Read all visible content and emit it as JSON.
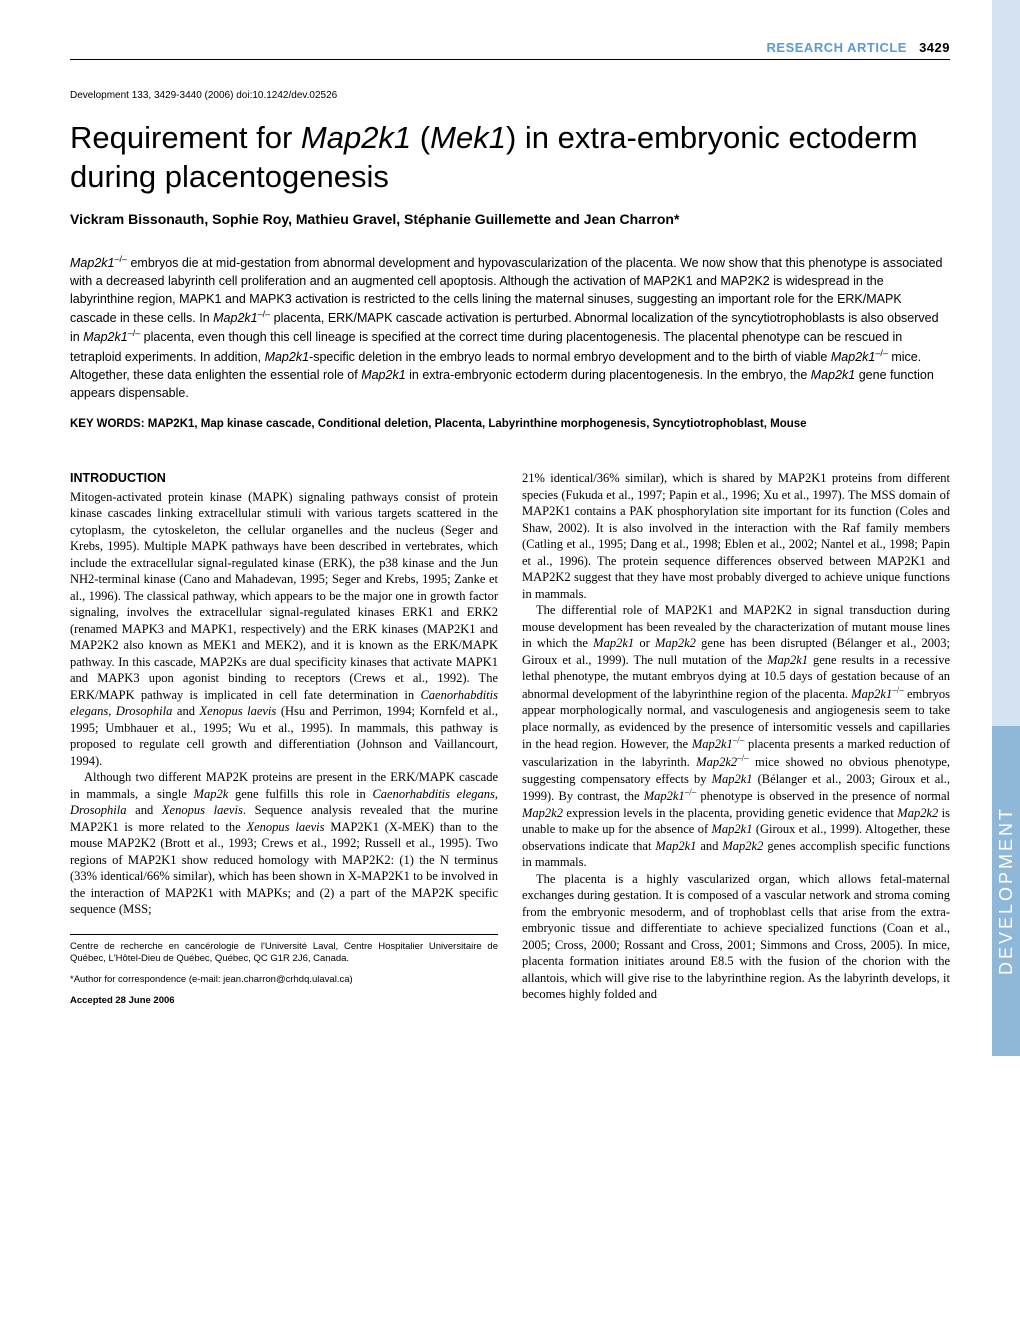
{
  "header": {
    "category": "RESEARCH ARTICLE",
    "pagenum": "3429"
  },
  "citation": "Development 133, 3429-3440 (2006) doi:10.1242/dev.02526",
  "title_html": "Requirement for <span class=\"italic\">Map2k1</span> (<span class=\"italic\">Mek1</span>) in extra-embryonic ectoderm during placentogenesis",
  "authors": "Vickram Bissonauth, Sophie Roy, Mathieu Gravel, Stéphanie Guillemette and Jean Charron*",
  "abstract_html": "<span class=\"italic\">Map2k1</span><span class=\"sup\">–/–</span> embryos die at mid-gestation from abnormal development and hypovascularization of the placenta. We now show that this phenotype is associated with a decreased labyrinth cell proliferation and an augmented cell apoptosis. Although the activation of MAP2K1 and MAP2K2 is widespread in the labyrinthine region, MAPK1 and MAPK3 activation is restricted to the cells lining the maternal sinuses, suggesting an important role for the ERK/MAPK cascade in these cells. In <span class=\"italic\">Map2k1</span><span class=\"sup\">–/–</span> placenta, ERK/MAPK cascade activation is perturbed. Abnormal localization of the syncytiotrophoblasts is also observed in <span class=\"italic\">Map2k1</span><span class=\"sup\">–/–</span> placenta, even though this cell lineage is specified at the correct time during placentogenesis. The placental phenotype can be rescued in tetraploid experiments. In addition, <span class=\"italic\">Map2k1</span>-specific deletion in the embryo leads to normal embryo development and to the birth of viable <span class=\"italic\">Map2k1</span><span class=\"sup\">–/–</span> mice. Altogether, these data enlighten the essential role of <span class=\"italic\">Map2k1</span> in extra-embryonic ectoderm during placentogenesis. In the embryo, the <span class=\"italic\">Map2k1</span> gene function appears dispensable.",
  "keywords": "KEY WORDS: MAP2K1, Map kinase cascade, Conditional deletion, Placenta, Labyrinthine morphogenesis, Syncytiotrophoblast, Mouse",
  "section_heading": "INTRODUCTION",
  "col1_p1_html": "Mitogen-activated protein kinase (MAPK) signaling pathways consist of protein kinase cascades linking extracellular stimuli with various targets scattered in the cytoplasm, the cytoskeleton, the cellular organelles and the nucleus (Seger and Krebs, 1995). Multiple MAPK pathways have been described in vertebrates, which include the extracellular signal-regulated kinase (ERK), the p38 kinase and the Jun NH2-terminal kinase (Cano and Mahadevan, 1995; Seger and Krebs, 1995; Zanke et al., 1996). The classical pathway, which appears to be the major one in growth factor signaling, involves the extracellular signal-regulated kinases ERK1 and ERK2 (renamed MAPK3 and MAPK1, respectively) and the ERK kinases (MAP2K1 and MAP2K2 also known as MEK1 and MEK2), and it is known as the ERK/MAPK pathway. In this cascade, MAP2Ks are dual specificity kinases that activate MAPK1 and MAPK3 upon agonist binding to receptors (Crews et al., 1992). The ERK/MAPK pathway is implicated in cell fate determination in <span class=\"italic\">Caenorhabditis elegans</span>, <span class=\"italic\">Drosophila</span> and <span class=\"italic\">Xenopus laevis</span> (Hsu and Perrimon, 1994; Kornfeld et al., 1995; Umbhauer et al., 1995; Wu et al., 1995). In mammals, this pathway is proposed to regulate cell growth and differentiation (Johnson and Vaillancourt, 1994).",
  "col1_p2_html": "Although two different MAP2K proteins are present in the ERK/MAPK cascade in mammals, a single <span class=\"italic\">Map2k</span> gene fulfills this role in <span class=\"italic\">Caenorhabditis elegans</span>, <span class=\"italic\">Drosophila</span> and <span class=\"italic\">Xenopus laevis</span>. Sequence analysis revealed that the murine MAP2K1 is more related to the <span class=\"italic\">Xenopus laevis</span> MAP2K1 (X-MEK) than to the mouse MAP2K2 (Brott et al., 1993; Crews et al., 1992; Russell et al., 1995). Two regions of MAP2K1 show reduced homology with MAP2K2: (1) the N terminus (33% identical/66% similar), which has been shown in X-MAP2K1 to be involved in the interaction of MAP2K1 with MAPKs; and (2) a part of the MAP2K specific sequence (MSS;",
  "col2_p1_html": "21% identical/36% similar), which is shared by MAP2K1 proteins from different species (Fukuda et al., 1997; Papin et al., 1996; Xu et al., 1997). The MSS domain of MAP2K1 contains a PAK phosphorylation site important for its function (Coles and Shaw, 2002). It is also involved in the interaction with the Raf family members (Catling et al., 1995; Dang et al., 1998; Eblen et al., 2002; Nantel et al., 1998; Papin et al., 1996). The protein sequence differences observed between MAP2K1 and MAP2K2 suggest that they have most probably diverged to achieve unique functions in mammals.",
  "col2_p2_html": "The differential role of MAP2K1 and MAP2K2 in signal transduction during mouse development has been revealed by the characterization of mutant mouse lines in which the <span class=\"italic\">Map2k1</span> or <span class=\"italic\">Map2k2</span> gene has been disrupted (Bélanger et al., 2003; Giroux et al., 1999). The null mutation of the <span class=\"italic\">Map2k1</span> gene results in a recessive lethal phenotype, the mutant embryos dying at 10.5 days of gestation because of an abnormal development of the labyrinthine region of the placenta. <span class=\"italic\">Map2k1</span><span class=\"sup\">–/–</span> embryos appear morphologically normal, and vasculogenesis and angiogenesis seem to take place normally, as evidenced by the presence of intersomitic vessels and capillaries in the head region. However, the <span class=\"italic\">Map2k1</span><span class=\"sup\">–/–</span> placenta presents a marked reduction of vascularization in the labyrinth. <span class=\"italic\">Map2k2</span><span class=\"sup\">–/–</span> mice showed no obvious phenotype, suggesting compensatory effects by <span class=\"italic\">Map2k1</span> (Bélanger et al., 2003; Giroux et al., 1999). By contrast, the <span class=\"italic\">Map2k1</span><span class=\"sup\">–/–</span> phenotype is observed in the presence of normal <span class=\"italic\">Map2k2</span> expression levels in the placenta, providing genetic evidence that <span class=\"italic\">Map2k2</span> is unable to make up for the absence of <span class=\"italic\">Map2k1</span> (Giroux et al., 1999). Altogether, these observations indicate that <span class=\"italic\">Map2k1</span> and <span class=\"italic\">Map2k2</span> genes accomplish specific functions in mammals.",
  "col2_p3_html": "The placenta is a highly vascularized organ, which allows fetal-maternal exchanges during gestation. It is composed of a vascular network and stroma coming from the embryonic mesoderm, and of trophoblast cells that arise from the extra-embryonic tissue and differentiate to achieve specialized functions (Coan et al., 2005; Cross, 2000; Rossant and Cross, 2001; Simmons and Cross, 2005). In mice, placenta formation initiates around E8.5 with the fusion of the chorion with the allantois, which will give rise to the labyrinthine region. As the labyrinth develops, it becomes highly folded and",
  "footnotes": {
    "affiliation": "Centre de recherche en cancérologie de l'Université Laval, Centre Hospitalier Universitaire de Québec, L'Hôtel-Dieu de Québec, Québec, QC G1R 2J6, Canada.",
    "correspondence": "*Author for correspondence (e-mail: jean.charron@crhdq.ulaval.ca)",
    "accepted": "Accepted 28 June 2006"
  },
  "side_tab": "DEVELOPMENT",
  "colors": {
    "header_blue": "#5b9bd5",
    "side_stripe": "#d4e3ef",
    "side_tab": "#8fb8d8",
    "side_tab_text": "#ffffff"
  }
}
